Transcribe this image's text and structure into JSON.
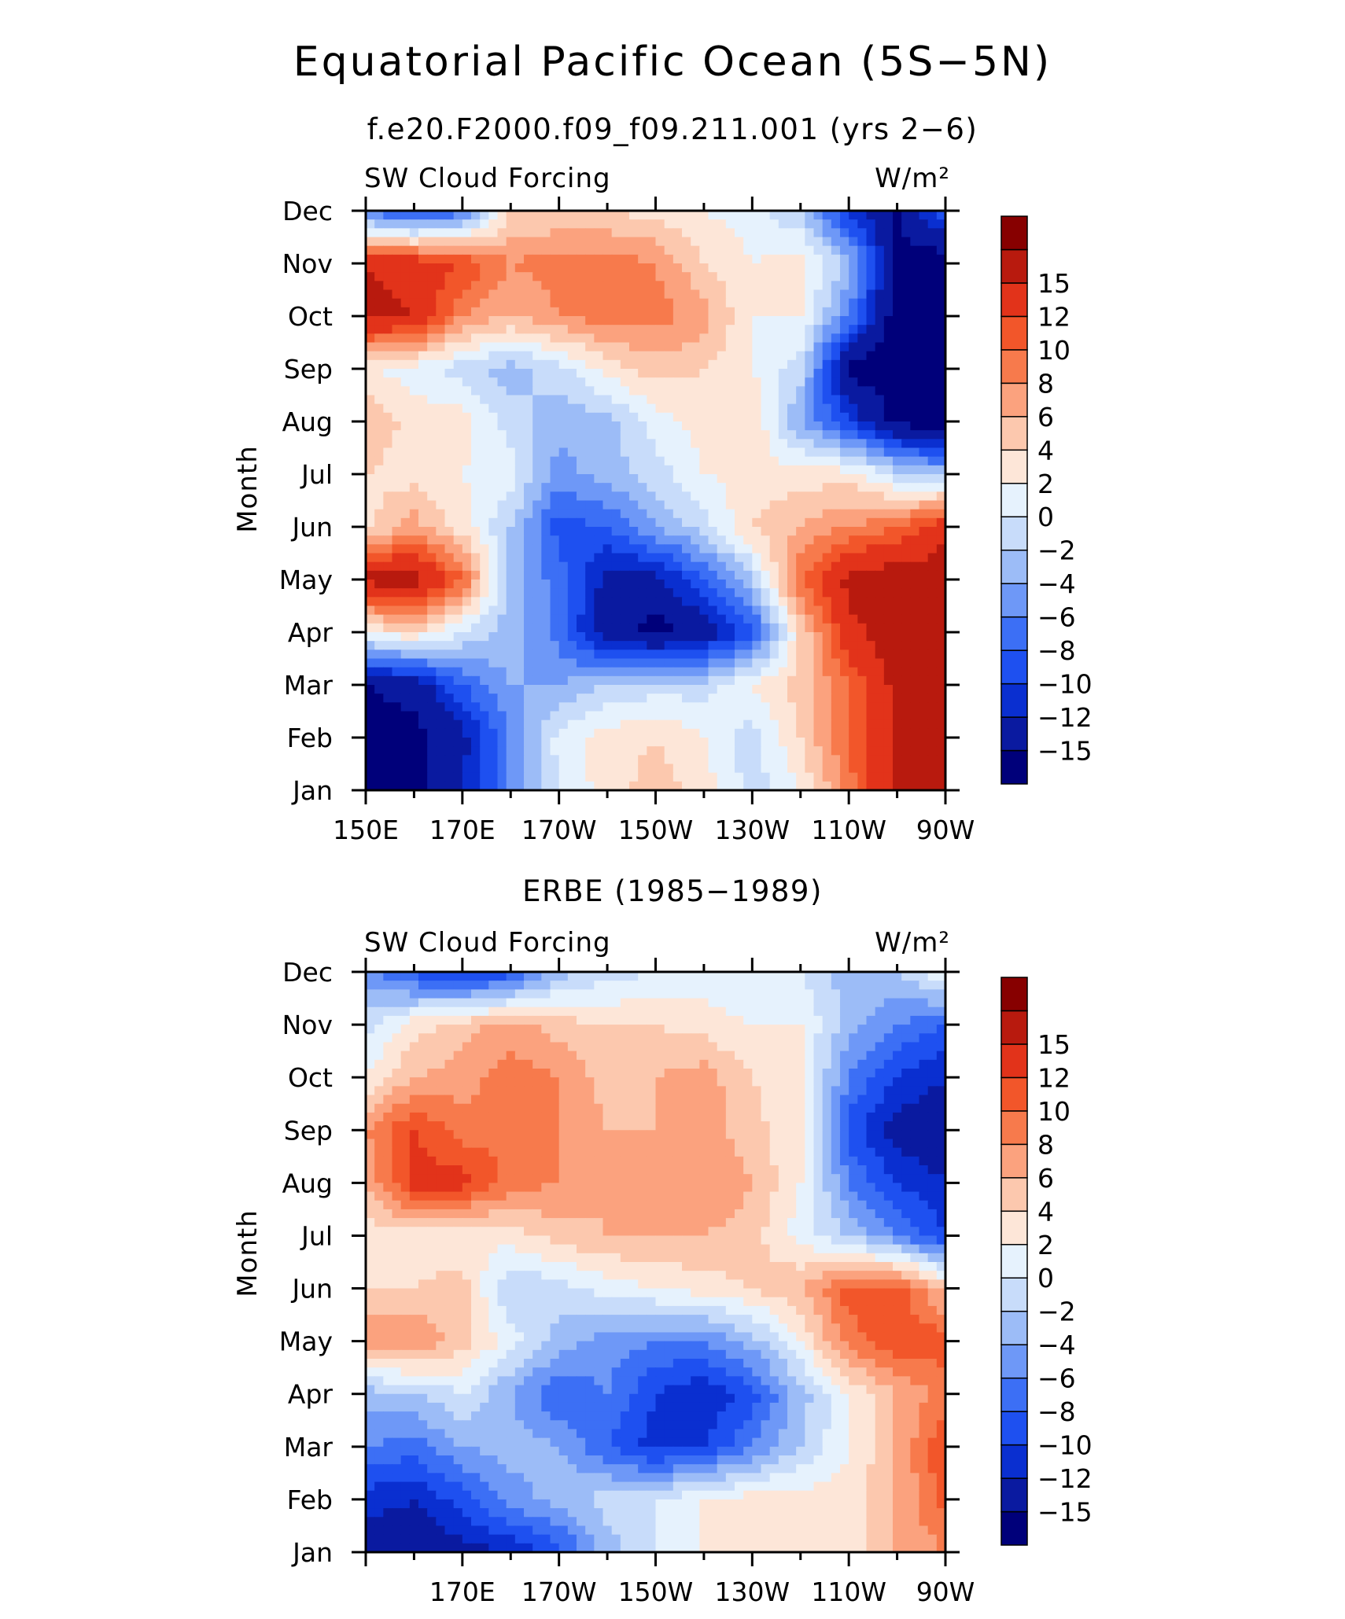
{
  "title": "Equatorial Pacific Ocean (5S−5N)",
  "colors": [
    "#00007a",
    "#0a1aa0",
    "#0a2fd0",
    "#1e50f0",
    "#3c6ff5",
    "#6e98f7",
    "#9cbcf7",
    "#c8dcfa",
    "#e6f2fd",
    "#fde6d8",
    "#fcc8ae",
    "#fba27e",
    "#f77a4c",
    "#f2562a",
    "#e2331a",
    "#b81a0e",
    "#870000"
  ],
  "chart_data": [
    {
      "type": "heatmap",
      "title": "f.e20.F2000.f09_f09.211.001 (yrs 2−6)",
      "left_label": "SW Cloud Forcing",
      "units": "W/m²",
      "ylabel": "Month",
      "xlabel": "",
      "x_range": [
        150,
        270
      ],
      "y_categories": [
        "Jan",
        "Feb",
        "Mar",
        "Apr",
        "May",
        "Jun",
        "Jul",
        "Aug",
        "Sep",
        "Oct",
        "Nov",
        "Dec"
      ],
      "x_tick_labels": [
        {
          "value": 150,
          "label": "150E"
        },
        {
          "value": 170,
          "label": "170E"
        },
        {
          "value": 190,
          "label": "170W"
        },
        {
          "value": 210,
          "label": "150W"
        },
        {
          "value": 230,
          "label": "130W"
        },
        {
          "value": 250,
          "label": "110W"
        },
        {
          "value": 270,
          "label": "90W"
        }
      ],
      "colorbar_levels": [
        "−15",
        "−12",
        "−10",
        "−8",
        "−6",
        "−4",
        "−2",
        "0",
        "2",
        "4",
        "6",
        "8",
        "10",
        "12",
        "15"
      ],
      "x": [
        150,
        160,
        170,
        180,
        190,
        200,
        210,
        220,
        230,
        240,
        250,
        260,
        270
      ],
      "z": [
        [
          -16,
          -16,
          -12,
          -6,
          0,
          3,
          5,
          3,
          -1,
          2,
          9,
          16,
          17
        ],
        [
          -16,
          -16,
          -13,
          -6,
          1,
          3,
          4,
          2,
          -1,
          4,
          10,
          16,
          17
        ],
        [
          -15,
          -14,
          -8,
          -4,
          -4,
          -2,
          -1,
          -1,
          2,
          5,
          10,
          16,
          17
        ],
        [
          2,
          4,
          0,
          -3,
          -7,
          -14,
          -16,
          -14,
          -9,
          4,
          14,
          17,
          17
        ],
        [
          16,
          17,
          10,
          -3,
          -7,
          -13,
          -13,
          -8,
          -2,
          10,
          16,
          17,
          17
        ],
        [
          3,
          7,
          3,
          -2,
          -9,
          -8,
          -4,
          -1,
          4,
          6,
          8,
          10,
          14
        ],
        [
          4,
          3,
          2,
          1,
          -5,
          -3,
          -1,
          2,
          3,
          3,
          3,
          -1,
          -3
        ],
        [
          6,
          3,
          3,
          -1,
          -3,
          -3,
          1,
          3,
          4,
          -4,
          -10,
          -16,
          -17
        ],
        [
          2,
          1,
          -1,
          -3,
          -1,
          3,
          5,
          4,
          2,
          -1,
          -16,
          -17,
          -17
        ],
        [
          16,
          15,
          8,
          6,
          8,
          9,
          9,
          7,
          2,
          2,
          -6,
          -17,
          -17
        ],
        [
          15,
          14,
          12,
          8,
          9,
          9,
          8,
          4,
          2,
          3,
          -3,
          -16,
          -17
        ],
        [
          -7,
          -10,
          -7,
          4,
          4,
          4,
          3,
          2,
          1,
          -2,
          -11,
          -15,
          -8
        ]
      ]
    },
    {
      "type": "heatmap",
      "title": "ERBE (1985−1989)",
      "left_label": "SW Cloud Forcing",
      "units": "W/m²",
      "ylabel": "Month",
      "xlabel": "",
      "x_range": [
        150,
        270
      ],
      "y_categories": [
        "Jan",
        "Feb",
        "Mar",
        "Apr",
        "May",
        "Jun",
        "Jul",
        "Aug",
        "Sep",
        "Oct",
        "Nov",
        "Dec"
      ],
      "x_tick_labels": [
        {
          "value": 170,
          "label": "170E"
        },
        {
          "value": 190,
          "label": "170W"
        },
        {
          "value": 210,
          "label": "150W"
        },
        {
          "value": 230,
          "label": "130W"
        },
        {
          "value": 250,
          "label": "110W"
        },
        {
          "value": 270,
          "label": "90W"
        }
      ],
      "colorbar_levels": [
        "−15",
        "−12",
        "−10",
        "−8",
        "−6",
        "−4",
        "−2",
        "0",
        "2",
        "4",
        "6",
        "8",
        "10",
        "12",
        "15"
      ],
      "x": [
        150,
        160,
        170,
        180,
        190,
        200,
        210,
        220,
        230,
        240,
        250,
        260,
        270
      ],
      "z": [
        [
          -14,
          -14,
          -13,
          -12,
          -9,
          -3,
          0,
          2,
          3,
          3,
          3,
          6,
          8
        ],
        [
          -11,
          -12,
          -9,
          -5,
          -3,
          -1,
          0,
          2,
          3,
          3,
          3,
          6,
          11
        ],
        [
          -6,
          -7,
          -4,
          -3,
          -4,
          -8,
          -11,
          -10,
          -6,
          -2,
          2,
          6,
          12
        ],
        [
          -3,
          -2,
          0,
          -4,
          -8,
          -6,
          -10,
          -12,
          -9,
          -3,
          2,
          6,
          9
        ],
        [
          8,
          8,
          5,
          1,
          -3,
          -5,
          -6,
          -6,
          -3,
          2,
          9,
          12,
          11
        ],
        [
          4,
          4,
          5,
          -2,
          -1,
          1,
          2,
          3,
          4,
          6,
          11,
          11,
          5
        ],
        [
          3,
          3,
          2,
          3,
          5,
          6,
          6,
          6,
          5,
          1,
          -2,
          -6,
          -10
        ],
        [
          6,
          13,
          13,
          9,
          8,
          6,
          7,
          8,
          6,
          2,
          -6,
          -10,
          -12
        ],
        [
          8,
          12,
          9,
          10,
          8,
          6,
          6,
          7,
          5,
          2,
          -9,
          -13,
          -14
        ],
        [
          2,
          6,
          7,
          9,
          8,
          5,
          6,
          7,
          4,
          2,
          -6,
          -10,
          -12
        ],
        [
          -1,
          3,
          5,
          7,
          5,
          4,
          4,
          3,
          2,
          2,
          -3,
          -6,
          -8
        ],
        [
          -5,
          -9,
          -11,
          -9,
          -3,
          -1,
          0,
          1,
          0,
          0,
          -3,
          -2,
          2
        ]
      ]
    }
  ]
}
